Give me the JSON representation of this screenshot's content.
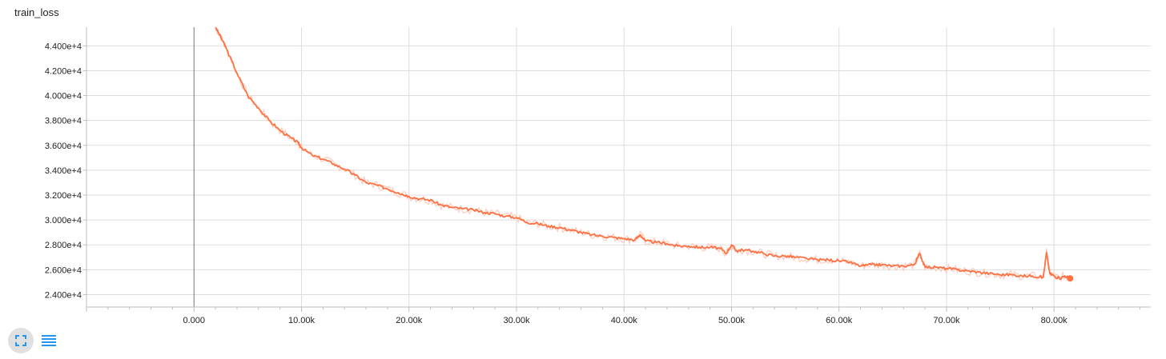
{
  "chart_data": {
    "type": "line",
    "title": "train_loss",
    "xlabel": "",
    "ylabel": "",
    "xlim": [
      -10000,
      89000
    ],
    "ylim": [
      23000,
      45500
    ],
    "x_ticks": [
      0,
      10000,
      20000,
      30000,
      40000,
      50000,
      60000,
      70000,
      80000
    ],
    "x_tick_labels": [
      "0.000",
      "10.00k",
      "20.00k",
      "30.00k",
      "40.00k",
      "50.00k",
      "60.00k",
      "70.00k",
      "80.00k"
    ],
    "y_ticks": [
      24000,
      26000,
      28000,
      30000,
      32000,
      34000,
      36000,
      38000,
      40000,
      42000,
      44000
    ],
    "y_tick_labels": [
      "2.400e+4",
      "2.600e+4",
      "2.800e+4",
      "3.000e+4",
      "3.200e+4",
      "3.400e+4",
      "3.600e+4",
      "3.800e+4",
      "4.000e+4",
      "4.200e+4",
      "4.400e+4"
    ],
    "grid": true,
    "series": [
      {
        "color": "#ff7043",
        "raw_color": "#ffccbc",
        "x": [
          2000,
          2500,
          3000,
          4000,
          5000,
          6000,
          7000,
          8000,
          9000,
          9700,
          10000,
          11000,
          12000,
          13000,
          14000,
          15000,
          16000,
          17000,
          18000,
          19000,
          20000,
          21000,
          22000,
          23000,
          24000,
          25000,
          26000,
          27000,
          28000,
          29000,
          30000,
          31000,
          32000,
          33000,
          34000,
          35000,
          36000,
          37000,
          38000,
          39000,
          40000,
          41000,
          41500,
          42000,
          43000,
          44000,
          45000,
          46000,
          47000,
          48000,
          49000,
          49500,
          50000,
          50500,
          51000,
          52000,
          53000,
          54000,
          55000,
          56000,
          57000,
          58000,
          59000,
          60000,
          61000,
          62000,
          63000,
          64000,
          65000,
          66000,
          67000,
          67500,
          68000,
          69000,
          70000,
          71000,
          72000,
          73000,
          74000,
          75000,
          76000,
          77000,
          78000,
          79000,
          79300,
          79600,
          80000,
          80500,
          81000,
          81500
        ],
        "y": [
          45500,
          44700,
          43800,
          41800,
          40000,
          39000,
          38000,
          37200,
          36600,
          36200,
          35800,
          35200,
          34900,
          34500,
          34100,
          33600,
          33000,
          32800,
          32500,
          32200,
          31900,
          31700,
          31600,
          31200,
          31000,
          30900,
          30800,
          30600,
          30500,
          30300,
          30200,
          29800,
          29700,
          29500,
          29400,
          29200,
          29000,
          28800,
          28700,
          28600,
          28500,
          28400,
          28800,
          28300,
          28200,
          28100,
          27900,
          27900,
          27800,
          27800,
          27700,
          27300,
          28000,
          27500,
          27600,
          27500,
          27300,
          27100,
          27100,
          27000,
          26900,
          26800,
          26800,
          26700,
          26600,
          26300,
          26400,
          26400,
          26300,
          26300,
          26400,
          27300,
          26200,
          26200,
          26100,
          26000,
          25900,
          25800,
          25700,
          25600,
          25600,
          25500,
          25500,
          25400,
          27400,
          25700,
          25500,
          25300,
          25500,
          25300
        ]
      }
    ]
  },
  "controls": {
    "expand_icon": "expand-icon",
    "list_icon": "list-icon",
    "accent": "#2196f3"
  }
}
